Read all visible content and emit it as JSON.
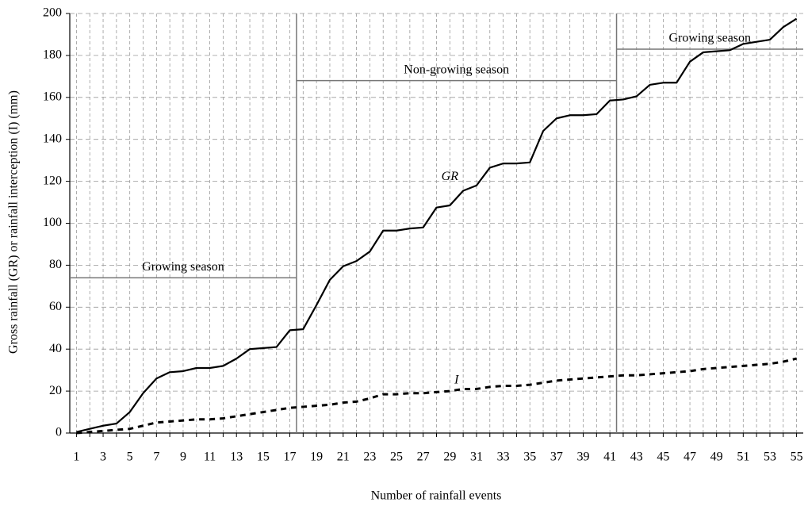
{
  "chart_data": {
    "type": "line",
    "xlabel": "Number of rainfall events",
    "ylabel": "Gross rainfall (GR) or rainfall interception (I) (mm)",
    "x": [
      1,
      2,
      3,
      4,
      5,
      6,
      7,
      8,
      9,
      10,
      11,
      12,
      13,
      14,
      15,
      16,
      17,
      18,
      19,
      20,
      21,
      22,
      23,
      24,
      25,
      26,
      27,
      28,
      29,
      30,
      31,
      32,
      33,
      34,
      35,
      36,
      37,
      38,
      39,
      40,
      41,
      42,
      43,
      44,
      45,
      46,
      47,
      48,
      49,
      50,
      51,
      52,
      53,
      54,
      55
    ],
    "xlim": [
      0.5,
      55.5
    ],
    "xticks": [
      1,
      3,
      5,
      7,
      9,
      11,
      13,
      15,
      17,
      19,
      21,
      23,
      25,
      27,
      29,
      31,
      33,
      35,
      37,
      39,
      41,
      43,
      45,
      47,
      49,
      51,
      53,
      55
    ],
    "ylim": [
      0,
      200
    ],
    "yticks": [
      0,
      20,
      40,
      60,
      80,
      100,
      120,
      140,
      160,
      180,
      200
    ],
    "grid": true,
    "series": [
      {
        "name": "GR",
        "color": "#000000",
        "dash": false,
        "label_x": 29,
        "label_y": 122,
        "values": [
          0.5,
          2,
          3.5,
          4.5,
          10,
          19,
          26,
          29,
          29.5,
          31,
          31,
          32,
          35.5,
          40,
          40.5,
          41,
          49,
          49.5,
          61,
          73,
          79.5,
          82,
          86.5,
          96.5,
          96.5,
          97.5,
          98,
          107.5,
          108.5,
          115.5,
          118,
          126.5,
          128.5,
          128.5,
          129,
          144,
          150,
          151.5,
          151.5,
          152,
          158.5,
          159,
          160.5,
          166,
          167,
          167,
          177,
          181.5,
          182,
          182.5,
          185.5,
          186.5,
          187.5,
          193.5,
          197.5
        ]
      },
      {
        "name": "I",
        "color": "#000000",
        "dash": true,
        "label_x": 29.5,
        "label_y": 25,
        "values": [
          0,
          0.5,
          1,
          1.5,
          2,
          3.5,
          5,
          5.5,
          6,
          6.5,
          6.5,
          7,
          8,
          9,
          10,
          11,
          12,
          12.5,
          13,
          13.5,
          14.5,
          15,
          16.5,
          18.5,
          18.5,
          19,
          19,
          19.5,
          20,
          21,
          21,
          22,
          22.5,
          22.5,
          23,
          24,
          25,
          25.5,
          26,
          26.5,
          27,
          27.5,
          27.5,
          28,
          28.5,
          29,
          29.5,
          30.5,
          31,
          31.5,
          32,
          32.5,
          33,
          34,
          35.5
        ]
      }
    ],
    "regions": [
      {
        "label": "Growing season",
        "x_start": 0.5,
        "x_end": 17.5,
        "y": 74
      },
      {
        "label": "Non-growing season",
        "x_start": 17.5,
        "x_end": 41.5,
        "y": 168
      },
      {
        "label": "Growing season",
        "x_start": 41.5,
        "x_end": 55.5,
        "y": 183
      }
    ]
  }
}
